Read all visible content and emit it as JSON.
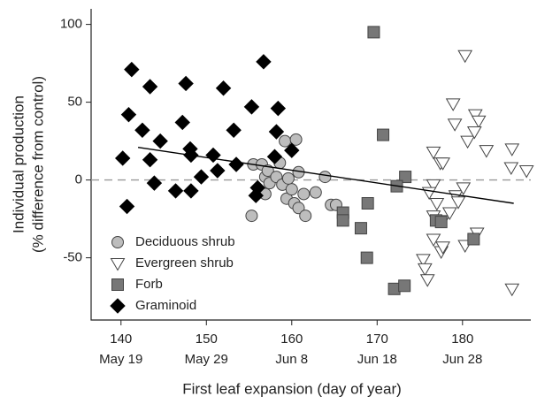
{
  "chart_data": {
    "type": "scatter",
    "y_label": [
      "Individual production",
      "(% difference from control)"
    ],
    "x_label": "First leaf expansion (day of year)",
    "xlim": [
      136.5,
      188
    ],
    "xticks": [
      140,
      150,
      160,
      170,
      180
    ],
    "xtick_dates": [
      "May 19",
      "May 29",
      "Jun 8",
      "Jun 18",
      "Jun 28"
    ],
    "ylim": [
      -90,
      110
    ],
    "yticks": [
      -50,
      0,
      50,
      100
    ],
    "hline": 0,
    "trend": {
      "x": [
        142,
        186
      ],
      "y": [
        21,
        -15
      ]
    },
    "legend": "lower left",
    "series": [
      {
        "name": "Deciduous shrub",
        "marker": "circle",
        "color": "#bdbdbd",
        "x": [
          155.3,
          155.5,
          156.5,
          156.9,
          157.2,
          156.9,
          157.4,
          158.2,
          158.6,
          159.2,
          160.5,
          158.9,
          159.4,
          160,
          160.3,
          160.8,
          161.4,
          161.6,
          160.8,
          162.8,
          163.9,
          164.6,
          165.2,
          159.6
        ],
        "values": [
          -23,
          10,
          10,
          2,
          6,
          -9,
          -2,
          2,
          11,
          25,
          26,
          -3,
          -12,
          -6,
          -15,
          -18,
          -9,
          -23,
          5,
          -8,
          2,
          -16,
          -16,
          1
        ]
      },
      {
        "name": "Evergreen shrub",
        "marker": "triangle-down",
        "color": "#ffffff",
        "x": [
          176.6,
          177.4,
          177.7,
          176.6,
          177,
          177.7,
          176.6,
          176.6,
          177.5,
          176.1,
          178.9,
          179.1,
          179.2,
          179.5,
          180.1,
          180.3,
          180.6,
          181.5,
          181.9,
          181.4,
          182.8,
          181.7,
          180.3,
          175.4,
          175.6,
          175.9,
          185.8,
          185.7,
          187.5,
          185.8,
          177.7,
          178.5
        ],
        "values": [
          18,
          11,
          11,
          -3,
          -15,
          -26,
          -23,
          -38,
          -46,
          -8,
          49,
          36,
          -10,
          -14,
          -5,
          80,
          25,
          42,
          38,
          31,
          19,
          -34,
          -42,
          -51,
          -57,
          -64,
          20,
          8,
          6,
          -70,
          -43,
          -21
        ]
      },
      {
        "name": "Forb",
        "marker": "square",
        "color": "#777777",
        "x": [
          169.6,
          170.7,
          173.3,
          172.3,
          168.9,
          166,
          166,
          168.1,
          168.8,
          172,
          173.2,
          176.9,
          177.5,
          181.3
        ],
        "values": [
          95,
          29,
          2,
          -4,
          -15,
          -21,
          -26,
          -31,
          -50,
          -70,
          -68,
          -26,
          -27,
          -38
        ]
      },
      {
        "name": "Graminoid",
        "marker": "diamond",
        "color": "#000000",
        "x": [
          141.25,
          140.9,
          140.2,
          140.7,
          143.4,
          142.5,
          143.4,
          144.6,
          143.9,
          146.4,
          147.6,
          147.2,
          148.1,
          148.2,
          148.2,
          149.4,
          150.8,
          152,
          151.3,
          153.2,
          153.5,
          155.3,
          156.7,
          158.4,
          158.2,
          158,
          156,
          155.8,
          160
        ],
        "values": [
          71,
          42,
          14,
          -17,
          60,
          32,
          13,
          25,
          -2,
          -7,
          62,
          37,
          20,
          16,
          -7,
          2,
          16,
          59,
          6,
          32,
          10,
          47,
          76,
          46,
          31,
          15,
          -5,
          -10,
          19
        ]
      }
    ]
  }
}
